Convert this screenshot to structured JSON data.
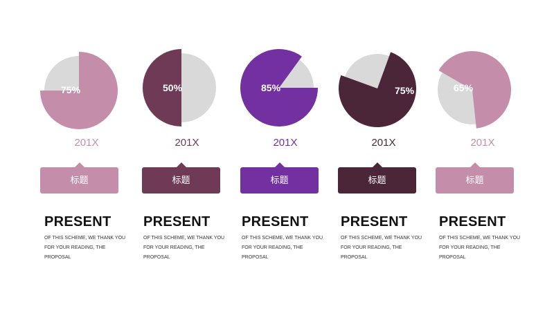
{
  "chart_data": {
    "type": "pie",
    "charts": [
      {
        "percent": 75,
        "label": "75%",
        "year": "201X",
        "tag": "标题",
        "color": "#C48EAA",
        "remainder_color": "#D9D9D9"
      },
      {
        "percent": 50,
        "label": "50%",
        "year": "201X",
        "tag": "标题",
        "color": "#6E3A55",
        "remainder_color": "#D9D9D9"
      },
      {
        "percent": 85,
        "label": "85%",
        "year": "201X",
        "tag": "标题",
        "color": "#7230A0",
        "remainder_color": "#D9D9D9"
      },
      {
        "percent": 75,
        "label": "75%",
        "year": "201X",
        "tag": "标题",
        "color": "#4A2638",
        "remainder_color": "#D9D9D9"
      },
      {
        "percent": 65,
        "label": "65%",
        "year": "201X",
        "tag": "标题",
        "color": "#C48EAA",
        "remainder_color": "#D9D9D9"
      }
    ]
  },
  "items": [
    {
      "heading": "PRESENT",
      "line1": "OF THIS SCHEME, WE THANK YOU",
      "line2": "FOR YOUR READING, THE",
      "line3": "PROPOSAL"
    },
    {
      "heading": "PRESENT",
      "line1": "OF THIS SCHEME, WE THANK YOU",
      "line2": "FOR YOUR READING, THE",
      "line3": "PROPOSAL"
    },
    {
      "heading": "PRESENT",
      "line1": "OF THIS SCHEME, WE THANK YOU",
      "line2": "FOR YOUR READING, THE",
      "line3": "PROPOSAL"
    },
    {
      "heading": "PRESENT",
      "line1": "OF THIS SCHEME, WE THANK YOU",
      "line2": "FOR YOUR READING, THE",
      "line3": "PROPOSAL"
    },
    {
      "heading": "PRESENT",
      "line1": "OF THIS SCHEME, WE THANK YOU",
      "line2": "FOR YOUR READING, THE",
      "line3": "PROPOSAL"
    }
  ]
}
